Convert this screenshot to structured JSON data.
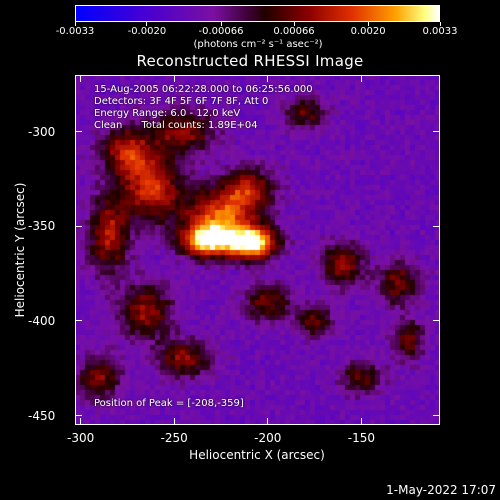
{
  "chart_data": {
    "type": "heatmap",
    "title": "Reconstructed RHESSI Image",
    "xlabel": "Heliocentric X (arcsec)",
    "ylabel": "Heliocentric Y (arcsec)",
    "xlim": [
      -303,
      -108
    ],
    "ylim": [
      -455,
      -270
    ],
    "x_ticks": [
      "-300",
      "-250",
      "-200",
      "-150"
    ],
    "x_tick_values": [
      -300,
      -250,
      -200,
      -150
    ],
    "y_ticks": [
      "-300",
      "-350",
      "-400",
      "-450"
    ],
    "y_tick_values": [
      -300,
      -350,
      -400,
      -450
    ],
    "colorbar": {
      "min": -0.0033,
      "max": 0.0033,
      "ticks": [
        "-0.0033",
        "-0.0020",
        "-0.00066",
        "0.00066",
        "0.0020",
        "0.0033"
      ],
      "tick_values": [
        -0.0033,
        -0.002,
        -0.00066,
        0.00066,
        0.002,
        0.0033
      ],
      "label": "(photons cm⁻² s⁻¹ asec⁻²)"
    },
    "annotations": [
      "15-Aug-2005 06:22:28.000 to 06:25:56.000",
      "Detectors: 3F 4F 5F 6F 7F 8F, Att 0",
      "Energy Range: 6.0 - 12.0 keV",
      "Clean      Total counts: 1.89E+04"
    ],
    "peak_text": "Position of Peak = [-208,-359]",
    "peak_position": [
      -208,
      -359
    ],
    "sources": [
      {
        "x": -208,
        "y": -359,
        "amp": 0.0033,
        "sx": 9,
        "sy": 6
      },
      {
        "x": -232,
        "y": -358,
        "amp": 0.0026,
        "sx": 10,
        "sy": 6
      },
      {
        "x": -225,
        "y": -345,
        "amp": 0.0018,
        "sx": 14,
        "sy": 10
      },
      {
        "x": -262,
        "y": -330,
        "amp": 0.0015,
        "sx": 12,
        "sy": 12
      },
      {
        "x": -275,
        "y": -310,
        "amp": 0.0012,
        "sx": 10,
        "sy": 9
      },
      {
        "x": -245,
        "y": -300,
        "amp": 0.0009,
        "sx": 12,
        "sy": 8
      },
      {
        "x": -285,
        "y": -355,
        "amp": 0.0012,
        "sx": 8,
        "sy": 14
      },
      {
        "x": -265,
        "y": -395,
        "amp": 0.001,
        "sx": 10,
        "sy": 10
      },
      {
        "x": -245,
        "y": -420,
        "amp": 0.0009,
        "sx": 10,
        "sy": 7
      },
      {
        "x": -290,
        "y": -430,
        "amp": 0.0008,
        "sx": 8,
        "sy": 8
      },
      {
        "x": -210,
        "y": -330,
        "amp": 0.001,
        "sx": 10,
        "sy": 8
      },
      {
        "x": -200,
        "y": -390,
        "amp": 0.0007,
        "sx": 9,
        "sy": 7
      },
      {
        "x": -160,
        "y": -370,
        "amp": 0.001,
        "sx": 8,
        "sy": 8
      },
      {
        "x": -130,
        "y": -380,
        "amp": 0.0008,
        "sx": 8,
        "sy": 8
      },
      {
        "x": -175,
        "y": -400,
        "amp": 0.0006,
        "sx": 7,
        "sy": 6
      },
      {
        "x": -150,
        "y": -430,
        "amp": 0.0006,
        "sx": 8,
        "sy": 6
      },
      {
        "x": -180,
        "y": -290,
        "amp": 0.0005,
        "sx": 8,
        "sy": 6
      },
      {
        "x": -125,
        "y": -410,
        "amp": 0.0005,
        "sx": 6,
        "sy": 8
      }
    ],
    "background_level": -0.0012
  },
  "datestamp": "1-May-2022 17:07"
}
